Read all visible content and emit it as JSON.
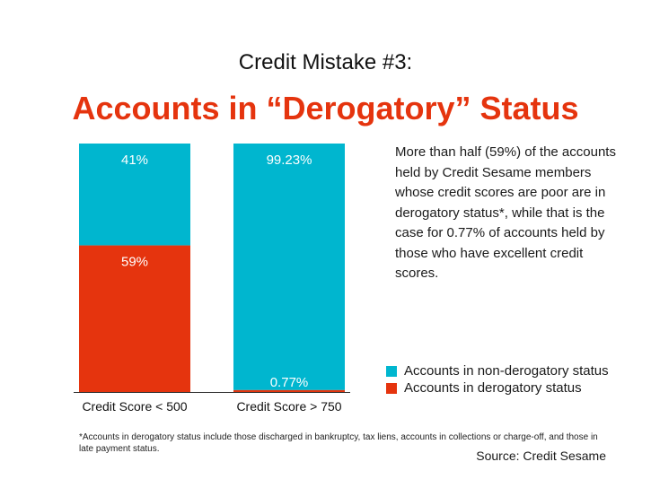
{
  "header": {
    "subtitle": "Credit Mistake #3:",
    "title": "Accounts in “Derogatory” Status"
  },
  "description": "More than half (59%) of the accounts held by Credit Sesame members whose credit scores are poor are in derogatory status*, while that is the case for 0.77% of accounts held by those who have excellent credit scores.",
  "colors": {
    "non_derogatory": "#00b6cf",
    "derogatory": "#e5340e",
    "title": "#e5340e"
  },
  "chart_data": {
    "type": "bar",
    "stacked": true,
    "categories": [
      "Credit Score < 500",
      "Credit Score > 750"
    ],
    "series": [
      {
        "name": "Accounts in derogatory status",
        "values": [
          59,
          0.77
        ],
        "labels": [
          "59%",
          "0.77%"
        ]
      },
      {
        "name": "Accounts in non-derogatory status",
        "values": [
          41,
          99.23
        ],
        "labels": [
          "41%",
          "99.23%"
        ]
      }
    ],
    "ylim": [
      0,
      100
    ],
    "legend": "bottom-right"
  },
  "legend": {
    "items": [
      {
        "label": "Accounts in non-derogatory status"
      },
      {
        "label": "Accounts in derogatory status"
      }
    ]
  },
  "footnote": "*Accounts in derogatory status include those discharged in bankruptcy, tax liens, accounts in collections or charge-off, and those in late payment status.",
  "source": "Source: Credit Sesame"
}
